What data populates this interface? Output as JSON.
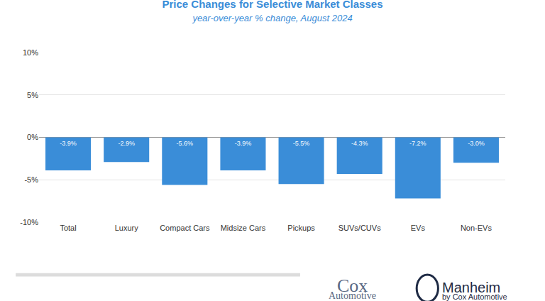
{
  "chart_data": {
    "type": "bar",
    "title": "Price Changes for Selective Market Classes",
    "subtitle": "year-over-year % change, August 2024",
    "categories": [
      "Total",
      "Luxury",
      "Compact Cars",
      "Midsize Cars",
      "Pickups",
      "SUVs/CUVs",
      "EVs",
      "Non-EVs"
    ],
    "values": [
      -3.9,
      -2.9,
      -5.6,
      -3.9,
      -5.5,
      -4.3,
      -7.2,
      -3.0
    ],
    "value_labels": [
      "-3.9%",
      "-2.9%",
      "-5.6%",
      "-3.9%",
      "-5.5%",
      "-4.3%",
      "-7.2%",
      "-3.0%"
    ],
    "data_labels": true,
    "color": "#3a8dd8",
    "ylim": [
      -10,
      10
    ],
    "yticks": [
      {
        "value": -10,
        "label": "-10%"
      },
      {
        "value": -5,
        "label": "-5%"
      },
      {
        "value": 0,
        "label": "0%"
      },
      {
        "value": 5,
        "label": "5%"
      },
      {
        "value": 10,
        "label": "10%"
      }
    ],
    "grid": true,
    "annotations": [
      "Cox",
      "Automotive",
      "Manheim",
      "by Cox Automotive"
    ]
  }
}
